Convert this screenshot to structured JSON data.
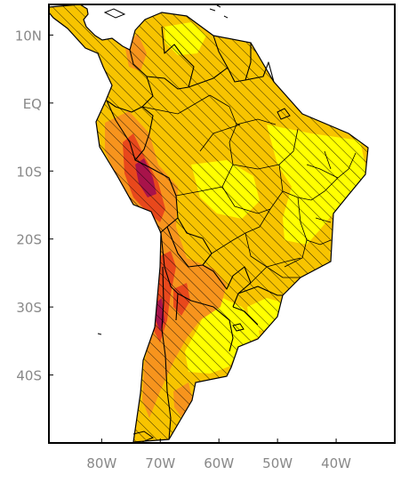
{
  "map": {
    "lat_labels": [
      "10N",
      "EQ",
      "10S",
      "20S",
      "30S",
      "40S"
    ],
    "lon_labels": [
      "80W",
      "70W",
      "60W",
      "50W",
      "40W"
    ],
    "lat_ticks": [
      10,
      0,
      -10,
      -20,
      -30,
      -40
    ],
    "lon_ticks": [
      -80,
      -70,
      -60,
      -50,
      -40
    ],
    "extent": {
      "lon_min": -89,
      "lon_max": -30,
      "lat_min": -50,
      "lat_max": 14.5
    },
    "colors": {
      "ocean": "#ffffff",
      "level_1": "#ffff00",
      "level_2": "#f8c400",
      "level_3": "#f7941d",
      "level_4": "#e8481c",
      "level_5": "#a8134a",
      "hatch": "#000000",
      "border": "#000000"
    }
  }
}
